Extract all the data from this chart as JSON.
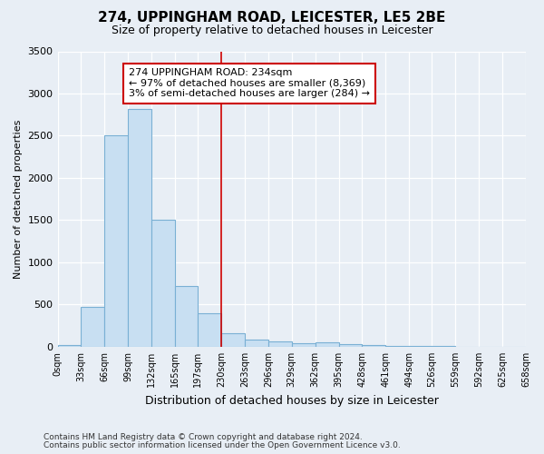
{
  "title": "274, UPPINGHAM ROAD, LEICESTER, LE5 2BE",
  "subtitle": "Size of property relative to detached houses in Leicester",
  "xlabel": "Distribution of detached houses by size in Leicester",
  "ylabel": "Number of detached properties",
  "footnote1": "Contains HM Land Registry data © Crown copyright and database right 2024.",
  "footnote2": "Contains public sector information licensed under the Open Government Licence v3.0.",
  "bar_color": "#c8dff2",
  "bar_edge_color": "#7ab0d4",
  "background_color": "#e8eef5",
  "plot_bg_color": "#e8eef5",
  "grid_color": "#ffffff",
  "annotation_text": "274 UPPINGHAM ROAD: 234sqm\n← 97% of detached houses are smaller (8,369)\n3% of semi-detached houses are larger (284) →",
  "annotation_box_color": "#ffffff",
  "annotation_box_edge_color": "#cc0000",
  "property_line_x": 230,
  "property_line_color": "#cc0000",
  "bin_edges": [
    0,
    33,
    66,
    99,
    132,
    165,
    197,
    230,
    263,
    296,
    329,
    362,
    395,
    428,
    461,
    494,
    526,
    559,
    592,
    625,
    658
  ],
  "bin_labels": [
    "0sqm",
    "33sqm",
    "66sqm",
    "99sqm",
    "132sqm",
    "165sqm",
    "197sqm",
    "230sqm",
    "263sqm",
    "296sqm",
    "329sqm",
    "362sqm",
    "395sqm",
    "428sqm",
    "461sqm",
    "494sqm",
    "526sqm",
    "559sqm",
    "592sqm",
    "625sqm",
    "658sqm"
  ],
  "bar_heights": [
    25,
    470,
    2500,
    2820,
    1500,
    720,
    400,
    160,
    90,
    60,
    40,
    55,
    35,
    20,
    10,
    5,
    5,
    3,
    2,
    1
  ],
  "ylim": [
    0,
    3500
  ],
  "yticks": [
    0,
    500,
    1000,
    1500,
    2000,
    2500,
    3000,
    3500
  ]
}
